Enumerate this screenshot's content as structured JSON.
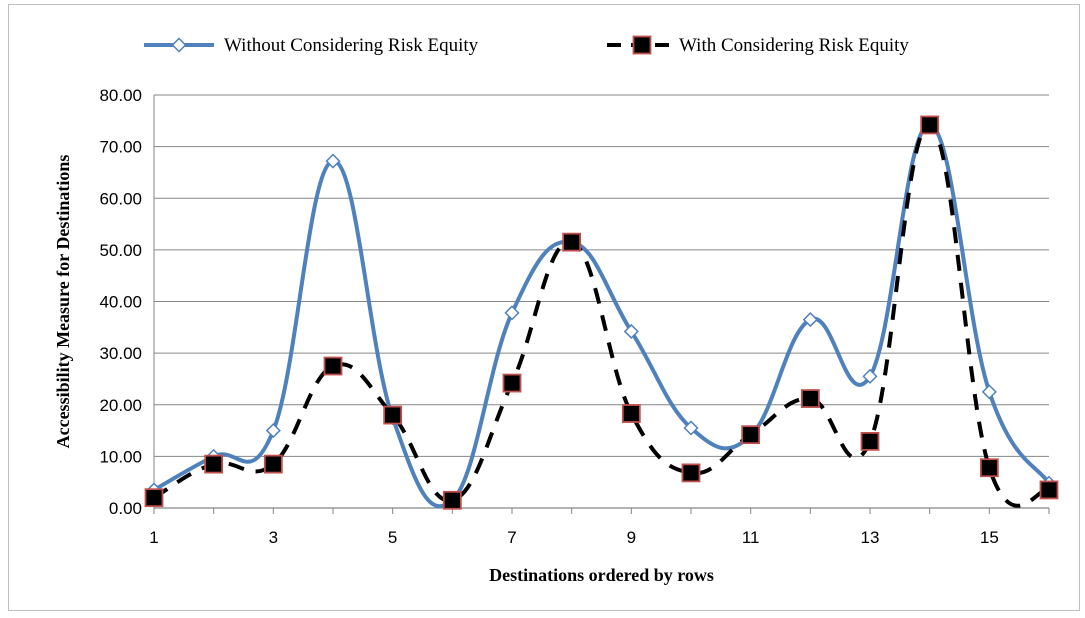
{
  "chart_data": {
    "type": "line",
    "title": "",
    "xlabel": "Destinations ordered by rows",
    "ylabel": "Accessibility Measure for Destinations",
    "x": [
      1,
      2,
      3,
      4,
      5,
      6,
      7,
      8,
      9,
      10,
      11,
      12,
      13,
      14,
      15,
      16
    ],
    "xticks": [
      1,
      3,
      5,
      7,
      9,
      11,
      13,
      15
    ],
    "xlim": [
      1,
      16
    ],
    "ylim": [
      0,
      80
    ],
    "yticks": [
      "0.00",
      "10.00",
      "20.00",
      "30.00",
      "40.00",
      "50.00",
      "60.00",
      "70.00",
      "80.00"
    ],
    "grid": true,
    "legend_position": "top",
    "smooth": true,
    "series": [
      {
        "name": "Without Considering Risk Equity",
        "values": [
          3.5,
          10.0,
          15.0,
          67.2,
          17.5,
          1.5,
          37.8,
          51.5,
          34.2,
          15.5,
          14.0,
          36.5,
          25.5,
          74.2,
          22.5,
          4.8
        ],
        "color": "#4f81bd",
        "marker": "diamond",
        "dash": "solid"
      },
      {
        "name": "With Considering Risk Equity",
        "values": [
          2.0,
          8.5,
          8.5,
          27.5,
          18.0,
          1.5,
          24.2,
          51.5,
          18.3,
          6.8,
          14.2,
          21.2,
          12.9,
          74.2,
          7.8,
          3.5
        ],
        "color": "#000000",
        "marker": "square",
        "marker_fill": "#000000",
        "marker_edge": "#c0504d",
        "dash": "dashed"
      }
    ]
  }
}
